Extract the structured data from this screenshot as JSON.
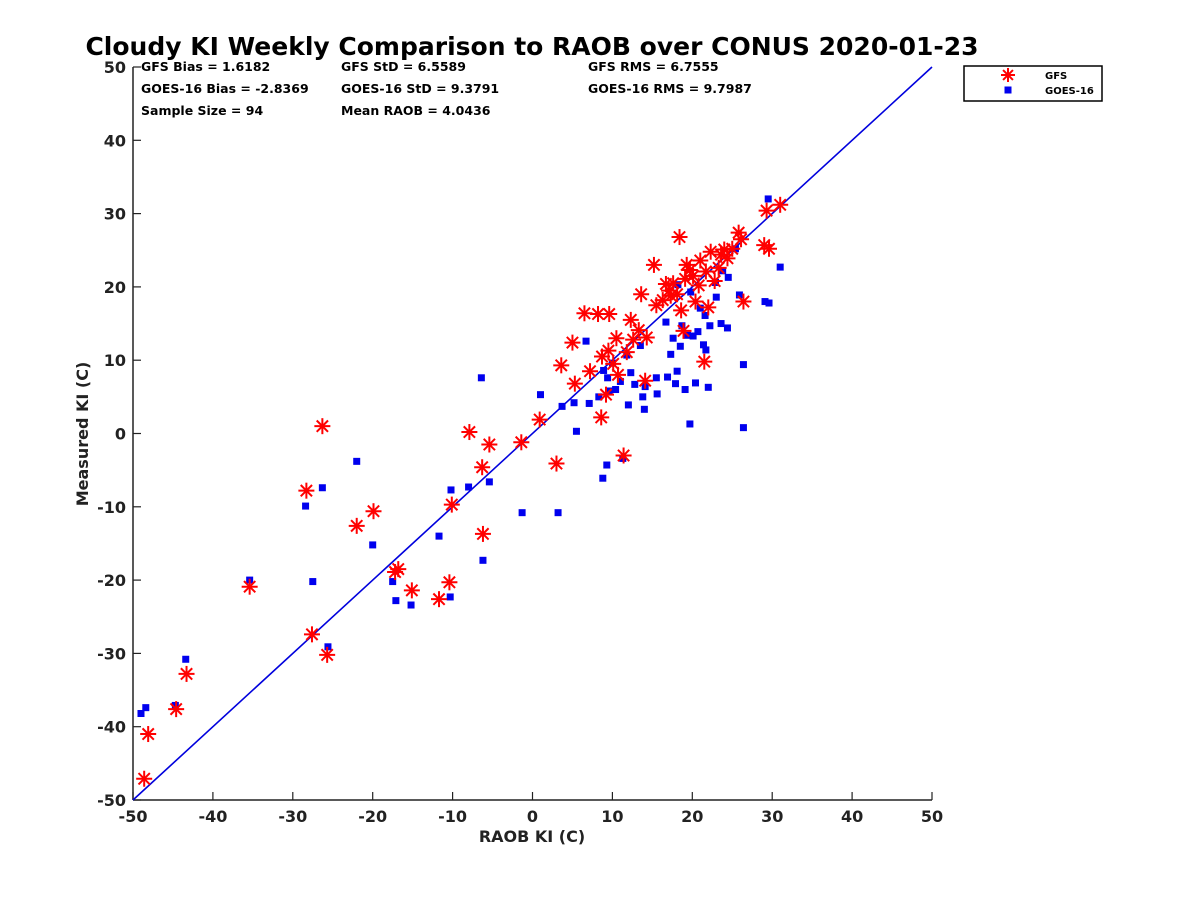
{
  "chart_data": {
    "type": "scatter",
    "title": "Cloudy KI Weekly Comparison to RAOB over CONUS 2020-01-23",
    "xlabel": "RAOB KI (C)",
    "ylabel": "Measured KI (C)",
    "xlim": [
      -50,
      50
    ],
    "ylim": [
      -50,
      50
    ],
    "xticks": [
      "-50",
      "-40",
      "-30",
      "-20",
      "-10",
      "0",
      "10",
      "20",
      "30",
      "40",
      "50"
    ],
    "yticks": [
      "-50",
      "-40",
      "-30",
      "-20",
      "-10",
      "0",
      "10",
      "20",
      "30",
      "40",
      "50"
    ],
    "grid": false,
    "legend_position": "outside-top-right",
    "stats": [
      "GFS Bias = 1.6182",
      "GFS StD = 6.5589",
      "GFS RMS = 6.7555",
      "GOES-16 Bias = -2.8369",
      "GOES-16 StD = 9.3791",
      "GOES-16 RMS = 9.7987",
      "Sample Size = 94",
      "Mean RAOB = 4.0436"
    ],
    "reference_line": {
      "type": "identity",
      "color": "#0000dd"
    },
    "series": [
      {
        "name": "GFS",
        "marker": "asterisk",
        "color": "#ff0000",
        "points": [
          [
            -48.6,
            -47.1
          ],
          [
            -48.1,
            -41.0
          ],
          [
            -44.6,
            -37.6
          ],
          [
            -43.3,
            -32.8
          ],
          [
            -35.4,
            -20.9
          ],
          [
            -28.3,
            -7.8
          ],
          [
            -27.6,
            -27.4
          ],
          [
            -26.3,
            1.0
          ],
          [
            -25.7,
            -30.2
          ],
          [
            -22.0,
            -12.6
          ],
          [
            -19.9,
            -10.6
          ],
          [
            -17.2,
            -18.9
          ],
          [
            -16.8,
            -18.5
          ],
          [
            -15.1,
            -21.4
          ],
          [
            -11.7,
            -22.6
          ],
          [
            -10.4,
            -20.3
          ],
          [
            -10.1,
            -9.7
          ],
          [
            -7.9,
            0.2
          ],
          [
            -6.3,
            -4.6
          ],
          [
            -6.2,
            -13.7
          ],
          [
            -5.4,
            -1.5
          ],
          [
            -1.4,
            -1.2
          ],
          [
            0.9,
            1.9
          ],
          [
            3.0,
            -4.1
          ],
          [
            3.6,
            9.3
          ],
          [
            5.0,
            12.4
          ],
          [
            5.3,
            6.8
          ],
          [
            6.5,
            16.4
          ],
          [
            7.2,
            8.5
          ],
          [
            8.2,
            16.3
          ],
          [
            8.6,
            2.2
          ],
          [
            8.7,
            10.5
          ],
          [
            9.2,
            5.3
          ],
          [
            9.5,
            11.3
          ],
          [
            9.6,
            16.3
          ],
          [
            10.1,
            9.5
          ],
          [
            10.5,
            13.0
          ],
          [
            10.7,
            8.0
          ],
          [
            11.4,
            -3.0
          ],
          [
            11.8,
            11.1
          ],
          [
            12.3,
            15.5
          ],
          [
            12.6,
            12.8
          ],
          [
            13.3,
            14.1
          ],
          [
            13.6,
            19.0
          ],
          [
            14.1,
            7.2
          ],
          [
            14.3,
            13.1
          ],
          [
            15.2,
            23.0
          ],
          [
            15.5,
            17.5
          ],
          [
            16.3,
            18.2
          ],
          [
            16.7,
            20.4
          ],
          [
            17.1,
            19.5
          ],
          [
            17.3,
            18.8
          ],
          [
            17.6,
            20.5
          ],
          [
            18.1,
            19.0
          ],
          [
            18.4,
            26.8
          ],
          [
            18.6,
            16.8
          ],
          [
            18.9,
            14.0
          ],
          [
            19.1,
            21.1
          ],
          [
            19.3,
            23.0
          ],
          [
            19.7,
            22.3
          ],
          [
            20.1,
            21.5
          ],
          [
            20.4,
            18.0
          ],
          [
            20.8,
            20.2
          ],
          [
            21.0,
            23.6
          ],
          [
            21.5,
            9.8
          ],
          [
            21.7,
            22.1
          ],
          [
            22.0,
            17.2
          ],
          [
            22.3,
            24.8
          ],
          [
            22.8,
            20.8
          ],
          [
            23.3,
            22.6
          ],
          [
            23.6,
            24.4
          ],
          [
            24.0,
            25.1
          ],
          [
            24.4,
            23.9
          ],
          [
            25.0,
            25.2
          ],
          [
            25.8,
            27.4
          ],
          [
            26.1,
            26.5
          ],
          [
            26.4,
            18.0
          ],
          [
            29.0,
            25.7
          ],
          [
            29.3,
            30.4
          ],
          [
            29.6,
            25.2
          ],
          [
            31.0,
            31.2
          ]
        ]
      },
      {
        "name": "GOES-16",
        "marker": "square",
        "color": "#0000ee",
        "points": [
          [
            -49.0,
            -38.2
          ],
          [
            -48.4,
            -37.4
          ],
          [
            -44.7,
            -37.1
          ],
          [
            -43.4,
            -30.8
          ],
          [
            -35.4,
            -20.0
          ],
          [
            -28.4,
            -9.9
          ],
          [
            -27.5,
            -20.2
          ],
          [
            -26.3,
            -7.4
          ],
          [
            -25.6,
            -29.1
          ],
          [
            -22.0,
            -3.8
          ],
          [
            -20.0,
            -15.2
          ],
          [
            -17.5,
            -20.2
          ],
          [
            -17.1,
            -22.8
          ],
          [
            -15.2,
            -23.4
          ],
          [
            -11.7,
            -14.0
          ],
          [
            -10.3,
            -22.3
          ],
          [
            -10.2,
            -7.7
          ],
          [
            -8.0,
            -7.3
          ],
          [
            -6.4,
            7.6
          ],
          [
            -6.2,
            -17.3
          ],
          [
            -5.4,
            -6.6
          ],
          [
            -1.3,
            -10.8
          ],
          [
            1.0,
            5.3
          ],
          [
            3.2,
            -10.8
          ],
          [
            3.7,
            3.7
          ],
          [
            5.2,
            4.2
          ],
          [
            5.5,
            0.3
          ],
          [
            6.7,
            12.6
          ],
          [
            7.1,
            4.1
          ],
          [
            8.3,
            5.0
          ],
          [
            8.8,
            -6.1
          ],
          [
            8.9,
            8.6
          ],
          [
            9.3,
            -4.3
          ],
          [
            9.4,
            7.6
          ],
          [
            9.6,
            5.8
          ],
          [
            10.0,
            9.6
          ],
          [
            10.4,
            6.0
          ],
          [
            11.0,
            7.1
          ],
          [
            11.3,
            -3.4
          ],
          [
            11.8,
            10.7
          ],
          [
            12.0,
            3.9
          ],
          [
            12.3,
            8.3
          ],
          [
            12.8,
            6.7
          ],
          [
            13.5,
            12.0
          ],
          [
            13.8,
            5.0
          ],
          [
            14.0,
            3.3
          ],
          [
            14.1,
            6.4
          ],
          [
            15.5,
            7.6
          ],
          [
            15.6,
            5.4
          ],
          [
            16.7,
            15.2
          ],
          [
            16.9,
            7.7
          ],
          [
            17.3,
            10.8
          ],
          [
            17.6,
            13.0
          ],
          [
            17.9,
            6.8
          ],
          [
            18.1,
            8.5
          ],
          [
            18.2,
            20.3
          ],
          [
            18.5,
            11.9
          ],
          [
            18.7,
            14.7
          ],
          [
            19.1,
            6.0
          ],
          [
            19.4,
            13.4
          ],
          [
            19.7,
            1.3
          ],
          [
            19.8,
            19.3
          ],
          [
            20.1,
            13.3
          ],
          [
            20.4,
            6.9
          ],
          [
            20.7,
            13.9
          ],
          [
            21.0,
            17.1
          ],
          [
            21.4,
            12.1
          ],
          [
            21.6,
            16.1
          ],
          [
            21.7,
            11.4
          ],
          [
            22.0,
            6.3
          ],
          [
            22.2,
            14.7
          ],
          [
            22.9,
            20.6
          ],
          [
            23.0,
            18.6
          ],
          [
            23.6,
            15.0
          ],
          [
            23.8,
            22.2
          ],
          [
            24.4,
            14.4
          ],
          [
            24.5,
            21.3
          ],
          [
            25.4,
            25.2
          ],
          [
            25.9,
            18.9
          ],
          [
            26.4,
            9.4
          ],
          [
            26.4,
            0.8
          ],
          [
            29.1,
            18.0
          ],
          [
            29.5,
            32.0
          ],
          [
            29.6,
            17.8
          ],
          [
            31.0,
            22.7
          ]
        ]
      }
    ]
  }
}
